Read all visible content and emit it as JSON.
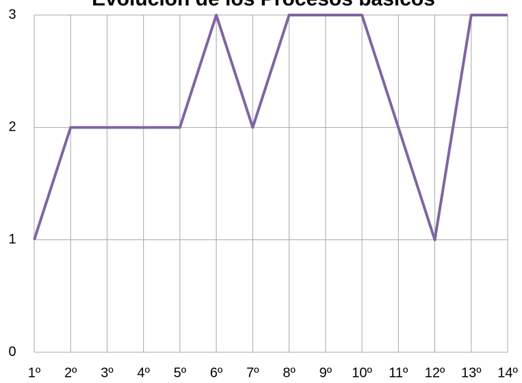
{
  "chart_data": {
    "type": "line",
    "title": "Evolución de los Procesos básicos",
    "categories": [
      "1º",
      "2º",
      "3º",
      "4º",
      "5º",
      "6º",
      "7º",
      "8º",
      "9º",
      "10º",
      "11º",
      "12º",
      "13º",
      "14º"
    ],
    "series": [
      {
        "name": "Procesos básicos",
        "color": "#8064a2",
        "values": [
          1,
          2,
          2,
          2,
          2,
          3,
          2,
          3,
          3,
          3,
          2,
          1,
          3,
          3
        ]
      }
    ],
    "ylim": [
      0,
      3
    ],
    "yticks": [
      0,
      1,
      2,
      3
    ],
    "grid": true
  }
}
